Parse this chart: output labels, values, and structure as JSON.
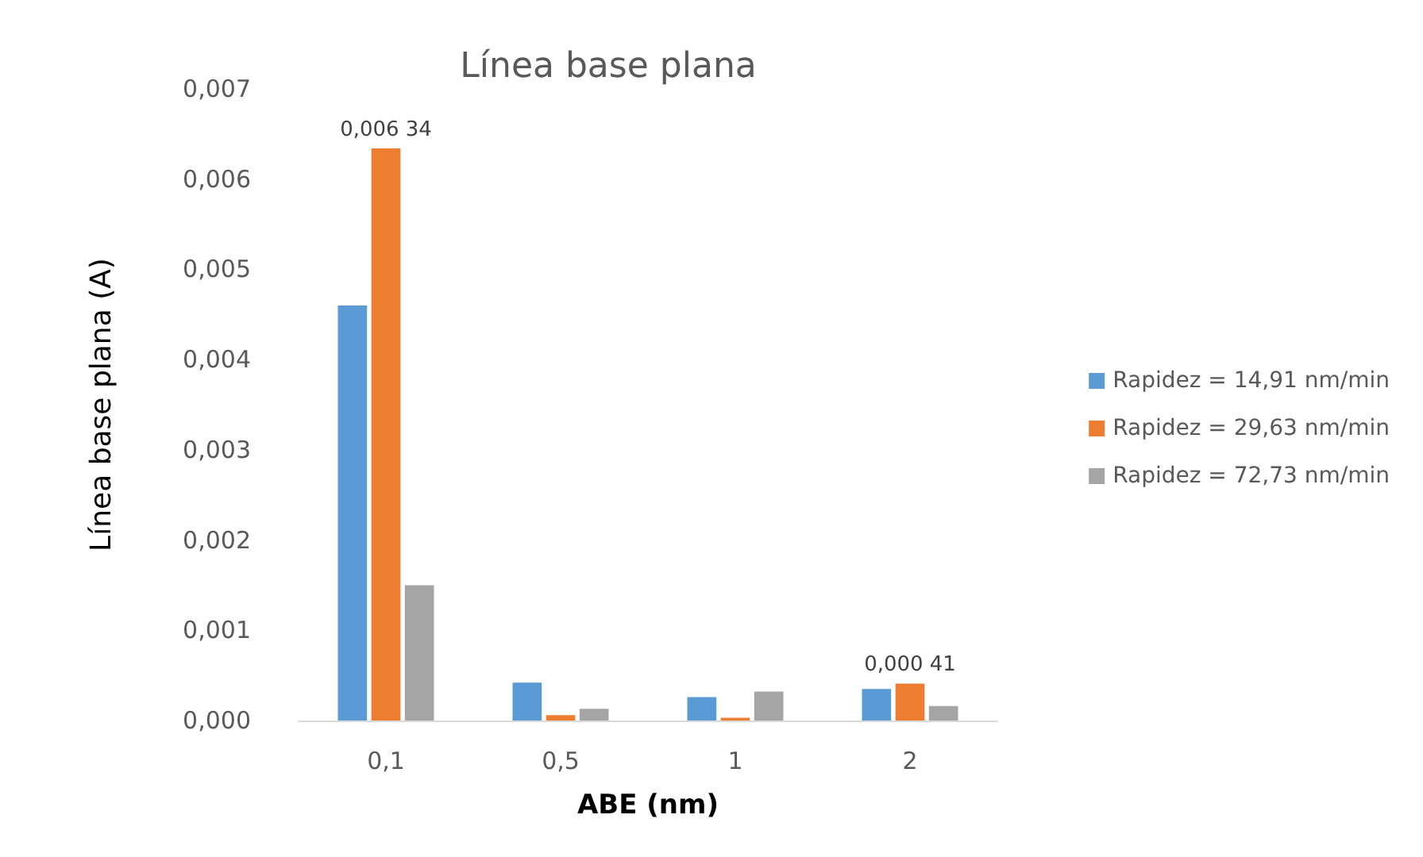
{
  "chart_data": {
    "type": "bar",
    "title": "Línea base plana",
    "xlabel": "ABE (nm)",
    "ylabel": "Línea base plana (A)",
    "categories": [
      "0,1",
      "0,5",
      "1",
      "2"
    ],
    "series": [
      {
        "name": "Rapidez = 14,91 nm/min",
        "color": "#5b9bd5",
        "values": [
          0.0046,
          0.00042,
          0.00026,
          0.00035
        ]
      },
      {
        "name": "Rapidez = 29,63 nm/min",
        "color": "#ed7d31",
        "values": [
          0.00634,
          6e-05,
          3e-05,
          0.00041
        ],
        "value_labels": [
          "0,006 34",
          null,
          null,
          "0,000 41"
        ]
      },
      {
        "name": "Rapidez = 72,73 nm/min",
        "color": "#a5a5a5",
        "values": [
          0.0015,
          0.00013,
          0.00032,
          0.00016
        ]
      }
    ],
    "ylim": [
      0,
      0.007
    ],
    "yticks": [
      {
        "value": 0,
        "label": "0,000"
      },
      {
        "value": 0.001,
        "label": "0,001"
      },
      {
        "value": 0.002,
        "label": "0,002"
      },
      {
        "value": 0.003,
        "label": "0,003"
      },
      {
        "value": 0.004,
        "label": "0,004"
      },
      {
        "value": 0.005,
        "label": "0,005"
      },
      {
        "value": 0.006,
        "label": "0,006"
      },
      {
        "value": 0.007,
        "label": "0,007"
      }
    ],
    "grid": false,
    "legend": "right"
  }
}
